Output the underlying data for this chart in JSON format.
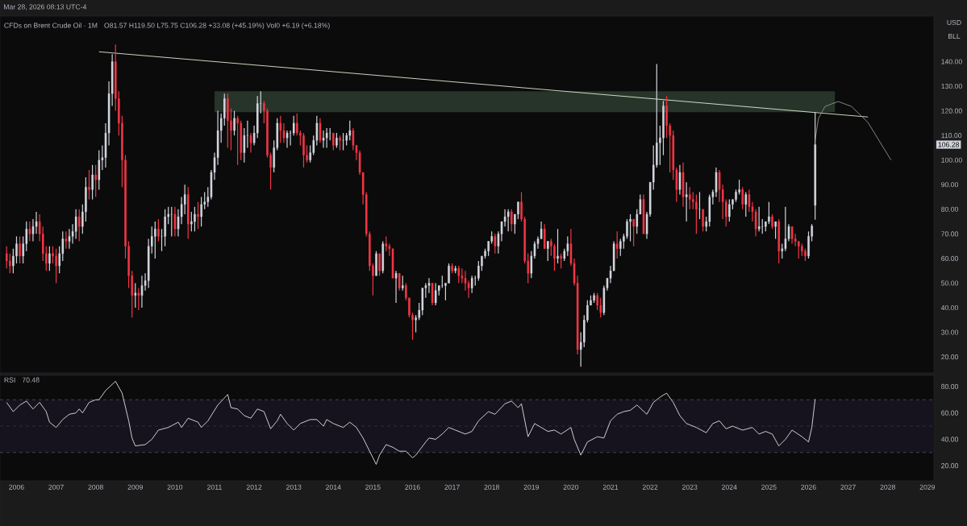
{
  "chart_data": [
    {
      "type": "candlestick",
      "title": "CFDs on Brent Crude Oil · 1M",
      "subtitle": "O81.57 H119.50 L75.75 C106.28 +33.08 (+45.19%) Vol0 +6.19 (+6.18%)",
      "annotations": [
        "Mar 28, 2026 08:13 UTC-4",
        "USD",
        "BLL",
        {
          "text": "106.28",
          "y": 106.28
        }
      ],
      "x": [
        "2005-10",
        "2005-11",
        "2005-12",
        "2006-01",
        "2006-02",
        "2006-03",
        "2006-04",
        "2006-05",
        "2006-06",
        "2006-07",
        "2006-08",
        "2006-09",
        "2006-10",
        "2006-11",
        "2006-12",
        "2007-01",
        "2007-02",
        "2007-03",
        "2007-04",
        "2007-05",
        "2007-06",
        "2007-07",
        "2007-08",
        "2007-09",
        "2007-10",
        "2007-11",
        "2007-12",
        "2008-01",
        "2008-02",
        "2008-03",
        "2008-04",
        "2008-05",
        "2008-06",
        "2008-07",
        "2008-08",
        "2008-09",
        "2008-10",
        "2008-11",
        "2008-12",
        "2009-01",
        "2009-02",
        "2009-03",
        "2009-04",
        "2009-05",
        "2009-06",
        "2009-07",
        "2009-08",
        "2009-09",
        "2009-10",
        "2009-11",
        "2009-12",
        "2010-01",
        "2010-02",
        "2010-03",
        "2010-04",
        "2010-05",
        "2010-06",
        "2010-07",
        "2010-08",
        "2010-09",
        "2010-10",
        "2010-11",
        "2010-12",
        "2011-01",
        "2011-02",
        "2011-03",
        "2011-04",
        "2011-05",
        "2011-06",
        "2011-07",
        "2011-08",
        "2011-09",
        "2011-10",
        "2011-11",
        "2011-12",
        "2012-01",
        "2012-02",
        "2012-03",
        "2012-04",
        "2012-05",
        "2012-06",
        "2012-07",
        "2012-08",
        "2012-09",
        "2012-10",
        "2012-11",
        "2012-12",
        "2013-01",
        "2013-02",
        "2013-03",
        "2013-04",
        "2013-05",
        "2013-06",
        "2013-07",
        "2013-08",
        "2013-09",
        "2013-10",
        "2013-11",
        "2013-12",
        "2014-01",
        "2014-02",
        "2014-03",
        "2014-04",
        "2014-05",
        "2014-06",
        "2014-07",
        "2014-08",
        "2014-09",
        "2014-10",
        "2014-11",
        "2014-12",
        "2015-01",
        "2015-02",
        "2015-03",
        "2015-04",
        "2015-05",
        "2015-06",
        "2015-07",
        "2015-08",
        "2015-09",
        "2015-10",
        "2015-11",
        "2015-12",
        "2016-01",
        "2016-02",
        "2016-03",
        "2016-04",
        "2016-05",
        "2016-06",
        "2016-07",
        "2016-08",
        "2016-09",
        "2016-10",
        "2016-11",
        "2016-12",
        "2017-01",
        "2017-02",
        "2017-03",
        "2017-04",
        "2017-05",
        "2017-06",
        "2017-07",
        "2017-08",
        "2017-09",
        "2017-10",
        "2017-11",
        "2017-12",
        "2018-01",
        "2018-02",
        "2018-03",
        "2018-04",
        "2018-05",
        "2018-06",
        "2018-07",
        "2018-08",
        "2018-09",
        "2018-10",
        "2018-11",
        "2018-12",
        "2019-01",
        "2019-02",
        "2019-03",
        "2019-04",
        "2019-05",
        "2019-06",
        "2019-07",
        "2019-08",
        "2019-09",
        "2019-10",
        "2019-11",
        "2019-12",
        "2020-01",
        "2020-02",
        "2020-03",
        "2020-04",
        "2020-05",
        "2020-06",
        "2020-07",
        "2020-08",
        "2020-09",
        "2020-10",
        "2020-11",
        "2020-12",
        "2021-01",
        "2021-02",
        "2021-03",
        "2021-04",
        "2021-05",
        "2021-06",
        "2021-07",
        "2021-08",
        "2021-09",
        "2021-10",
        "2021-11",
        "2021-12",
        "2022-01",
        "2022-02",
        "2022-03",
        "2022-04",
        "2022-05",
        "2022-06",
        "2022-07",
        "2022-08",
        "2022-09",
        "2022-10",
        "2022-11",
        "2022-12",
        "2023-01",
        "2023-02",
        "2023-03",
        "2023-04",
        "2023-05",
        "2023-06",
        "2023-07",
        "2023-08",
        "2023-09",
        "2023-10",
        "2023-11",
        "2023-12",
        "2024-01",
        "2024-02",
        "2024-03",
        "2024-04",
        "2024-05",
        "2024-06",
        "2024-07",
        "2024-08",
        "2024-09",
        "2024-10",
        "2024-11",
        "2024-12",
        "2025-01",
        "2025-02",
        "2025-03",
        "2025-04",
        "2025-05",
        "2025-06",
        "2025-07",
        "2025-08",
        "2025-09",
        "2025-10",
        "2025-11",
        "2025-12",
        "2026-01",
        "2026-02",
        "2026-03"
      ],
      "ohlc": [
        [
          62,
          65,
          56,
          59
        ],
        [
          59,
          62,
          54,
          57
        ],
        [
          57,
          64,
          54,
          61
        ],
        [
          61,
          69,
          58,
          66
        ],
        [
          66,
          69,
          58,
          61
        ],
        [
          61,
          69,
          58,
          66
        ],
        [
          66,
          75,
          63,
          72
        ],
        [
          72,
          75,
          67,
          70
        ],
        [
          70,
          76,
          67,
          73
        ],
        [
          73,
          79,
          70,
          75
        ],
        [
          75,
          78,
          67,
          70
        ],
        [
          70,
          73,
          59,
          62
        ],
        [
          62,
          65,
          55,
          58
        ],
        [
          58,
          65,
          55,
          62
        ],
        [
          62,
          65,
          58,
          61
        ],
        [
          61,
          64,
          50,
          57
        ],
        [
          57,
          65,
          54,
          62
        ],
        [
          62,
          71,
          59,
          68
        ],
        [
          68,
          71,
          64,
          67
        ],
        [
          67,
          72,
          64,
          69
        ],
        [
          69,
          74,
          66,
          71
        ],
        [
          71,
          80,
          68,
          77
        ],
        [
          77,
          80,
          67,
          73
        ],
        [
          73,
          82,
          70,
          79
        ],
        [
          79,
          93,
          75,
          89
        ],
        [
          89,
          96,
          84,
          88
        ],
        [
          88,
          98,
          84,
          94
        ],
        [
          94,
          98,
          85,
          92
        ],
        [
          92,
          104,
          88,
          100
        ],
        [
          100,
          106,
          96,
          101
        ],
        [
          101,
          115,
          97,
          111
        ],
        [
          111,
          132,
          106,
          127
        ],
        [
          127,
          143,
          122,
          140
        ],
        [
          140,
          147,
          120,
          125
        ],
        [
          125,
          128,
          110,
          115
        ],
        [
          115,
          118,
          89,
          100
        ],
        [
          100,
          102,
          60,
          65
        ],
        [
          65,
          67,
          48,
          53
        ],
        [
          53,
          55,
          36,
          45
        ],
        [
          45,
          50,
          40,
          46
        ],
        [
          46,
          48,
          39,
          45
        ],
        [
          45,
          53,
          40,
          49
        ],
        [
          49,
          54,
          47,
          51
        ],
        [
          51,
          68,
          48,
          65
        ],
        [
          65,
          73,
          62,
          69
        ],
        [
          69,
          75,
          60,
          72
        ],
        [
          72,
          76,
          67,
          69
        ],
        [
          69,
          72,
          63,
          69
        ],
        [
          69,
          80,
          65,
          77
        ],
        [
          77,
          81,
          74,
          78
        ],
        [
          78,
          81,
          69,
          78
        ],
        [
          78,
          81,
          69,
          72
        ],
        [
          72,
          80,
          69,
          77
        ],
        [
          77,
          85,
          74,
          82
        ],
        [
          82,
          90,
          78,
          86
        ],
        [
          86,
          89,
          68,
          74
        ],
        [
          74,
          79,
          71,
          75
        ],
        [
          75,
          81,
          71,
          78
        ],
        [
          78,
          83,
          72,
          77
        ],
        [
          77,
          85,
          73,
          82
        ],
        [
          82,
          87,
          80,
          83
        ],
        [
          83,
          89,
          81,
          85
        ],
        [
          85,
          96,
          84,
          95
        ],
        [
          95,
          103,
          92,
          101
        ],
        [
          101,
          120,
          98,
          112
        ],
        [
          112,
          119,
          107,
          117
        ],
        [
          117,
          127,
          114,
          125
        ],
        [
          125,
          127,
          105,
          116
        ],
        [
          116,
          121,
          104,
          112
        ],
        [
          112,
          120,
          110,
          117
        ],
        [
          117,
          118,
          98,
          115
        ],
        [
          115,
          116,
          100,
          103
        ],
        [
          103,
          113,
          99,
          110
        ],
        [
          110,
          116,
          105,
          110
        ],
        [
          110,
          111,
          103,
          107
        ],
        [
          107,
          114,
          106,
          111
        ],
        [
          111,
          126,
          109,
          123
        ],
        [
          123,
          128,
          119,
          123
        ],
        [
          123,
          124,
          115,
          120
        ],
        [
          120,
          121,
          101,
          102
        ],
        [
          102,
          103,
          88,
          97
        ],
        [
          97,
          108,
          95,
          105
        ],
        [
          105,
          117,
          104,
          115
        ],
        [
          115,
          118,
          107,
          112
        ],
        [
          112,
          115,
          107,
          109
        ],
        [
          109,
          112,
          105,
          111
        ],
        [
          111,
          112,
          106,
          111
        ],
        [
          111,
          118,
          110,
          115
        ],
        [
          115,
          119,
          110,
          111
        ],
        [
          111,
          112,
          106,
          110
        ],
        [
          110,
          111,
          97,
          102
        ],
        [
          102,
          106,
          99,
          100
        ],
        [
          100,
          106,
          99,
          103
        ],
        [
          103,
          110,
          102,
          108
        ],
        [
          108,
          118,
          106,
          115
        ],
        [
          115,
          117,
          107,
          108
        ],
        [
          108,
          112,
          105,
          109
        ],
        [
          109,
          113,
          105,
          111
        ],
        [
          111,
          113,
          108,
          111
        ],
        [
          111,
          111,
          104,
          106
        ],
        [
          106,
          111,
          105,
          109
        ],
        [
          109,
          110,
          104,
          108
        ],
        [
          108,
          111,
          104,
          108
        ],
        [
          108,
          111,
          106,
          110
        ],
        [
          110,
          116,
          108,
          112
        ],
        [
          112,
          113,
          104,
          106
        ],
        [
          106,
          106,
          100,
          103
        ],
        [
          103,
          104,
          94,
          95
        ],
        [
          95,
          95,
          82,
          86
        ],
        [
          86,
          87,
          69,
          70
        ],
        [
          70,
          71,
          55,
          57
        ],
        [
          57,
          58,
          45,
          53
        ],
        [
          53,
          63,
          53,
          62
        ],
        [
          62,
          62,
          53,
          55
        ],
        [
          55,
          67,
          54,
          66
        ],
        [
          66,
          69,
          63,
          65
        ],
        [
          65,
          66,
          61,
          64
        ],
        [
          64,
          64,
          52,
          52
        ],
        [
          52,
          55,
          42,
          54
        ],
        [
          54,
          54,
          47,
          48
        ],
        [
          48,
          53,
          47,
          49
        ],
        [
          49,
          50,
          43,
          44
        ],
        [
          44,
          44,
          36,
          37
        ],
        [
          37,
          38,
          27,
          35
        ],
        [
          35,
          37,
          30,
          36
        ],
        [
          36,
          42,
          35,
          39
        ],
        [
          39,
          48,
          37,
          48
        ],
        [
          48,
          50,
          44,
          49
        ],
        [
          49,
          52,
          46,
          50
        ],
        [
          50,
          50,
          41,
          42
        ],
        [
          42,
          50,
          41,
          47
        ],
        [
          47,
          49,
          45,
          49
        ],
        [
          49,
          53,
          48,
          49
        ],
        [
          49,
          50,
          43,
          50
        ],
        [
          50,
          58,
          50,
          57
        ],
        [
          57,
          58,
          54,
          55
        ],
        [
          55,
          57,
          54,
          56
        ],
        [
          56,
          57,
          50,
          53
        ],
        [
          53,
          56,
          50,
          52
        ],
        [
          52,
          55,
          47,
          50
        ],
        [
          50,
          51,
          44,
          48
        ],
        [
          48,
          53,
          46,
          52
        ],
        [
          52,
          53,
          49,
          52
        ],
        [
          52,
          59,
          51,
          57
        ],
        [
          57,
          61,
          55,
          61
        ],
        [
          61,
          64,
          60,
          63
        ],
        [
          63,
          67,
          61,
          67
        ],
        [
          67,
          71,
          66,
          69
        ],
        [
          69,
          70,
          62,
          65
        ],
        [
          65,
          71,
          62,
          70
        ],
        [
          70,
          75,
          67,
          75
        ],
        [
          75,
          80,
          73,
          77
        ],
        [
          77,
          80,
          71,
          79
        ],
        [
          79,
          80,
          71,
          74
        ],
        [
          74,
          78,
          70,
          78
        ],
        [
          78,
          83,
          76,
          83
        ],
        [
          83,
          87,
          75,
          76
        ],
        [
          76,
          77,
          58,
          59
        ],
        [
          59,
          62,
          50,
          54
        ],
        [
          54,
          63,
          52,
          61
        ],
        [
          61,
          67,
          60,
          66
        ],
        [
          66,
          69,
          64,
          68
        ],
        [
          68,
          75,
          68,
          72
        ],
        [
          72,
          74,
          64,
          64
        ],
        [
          64,
          67,
          59,
          67
        ],
        [
          67,
          68,
          61,
          65
        ],
        [
          65,
          66,
          55,
          60
        ],
        [
          60,
          72,
          58,
          61
        ],
        [
          61,
          62,
          56,
          60
        ],
        [
          60,
          64,
          59,
          63
        ],
        [
          63,
          69,
          61,
          66
        ],
        [
          66,
          72,
          57,
          58
        ],
        [
          58,
          60,
          49,
          50
        ],
        [
          50,
          53,
          21,
          23
        ],
        [
          23,
          30,
          16,
          26
        ],
        [
          26,
          37,
          24,
          35
        ],
        [
          35,
          43,
          34,
          41
        ],
        [
          41,
          45,
          41,
          43
        ],
        [
          43,
          46,
          42,
          45
        ],
        [
          45,
          46,
          39,
          41
        ],
        [
          41,
          44,
          36,
          38
        ],
        [
          38,
          49,
          37,
          48
        ],
        [
          48,
          52,
          47,
          52
        ],
        [
          52,
          57,
          50,
          55
        ],
        [
          55,
          67,
          55,
          66
        ],
        [
          66,
          71,
          60,
          64
        ],
        [
          64,
          68,
          61,
          67
        ],
        [
          67,
          70,
          64,
          69
        ],
        [
          69,
          76,
          68,
          75
        ],
        [
          75,
          78,
          67,
          76
        ],
        [
          76,
          76,
          65,
          73
        ],
        [
          73,
          80,
          70,
          78
        ],
        [
          78,
          86,
          78,
          84
        ],
        [
          84,
          86,
          70,
          70
        ],
        [
          70,
          79,
          68,
          78
        ],
        [
          78,
          91,
          77,
          91
        ],
        [
          91,
          106,
          88,
          98
        ],
        [
          98,
          139,
          97,
          107
        ],
        [
          107,
          114,
          98,
          109
        ],
        [
          109,
          124,
          102,
          122
        ],
        [
          122,
          126,
          109,
          114
        ],
        [
          114,
          115,
          95,
          110
        ],
        [
          110,
          112,
          92,
          96
        ],
        [
          96,
          97,
          83,
          88
        ],
        [
          88,
          98,
          86,
          95
        ],
        [
          95,
          99,
          81,
          85
        ],
        [
          85,
          91,
          75,
          86
        ],
        [
          86,
          89,
          80,
          84
        ],
        [
          84,
          87,
          80,
          83
        ],
        [
          83,
          86,
          70,
          80
        ],
        [
          80,
          87,
          76,
          80
        ],
        [
          80,
          80,
          71,
          73
        ],
        [
          73,
          77,
          71,
          75
        ],
        [
          75,
          86,
          73,
          85
        ],
        [
          85,
          88,
          82,
          87
        ],
        [
          87,
          97,
          85,
          95
        ],
        [
          95,
          96,
          83,
          88
        ],
        [
          88,
          90,
          76,
          83
        ],
        [
          83,
          84,
          73,
          77
        ],
        [
          77,
          84,
          75,
          82
        ],
        [
          82,
          84,
          80,
          84
        ],
        [
          84,
          88,
          83,
          87
        ],
        [
          87,
          92,
          86,
          88
        ],
        [
          88,
          89,
          80,
          82
        ],
        [
          82,
          87,
          77,
          86
        ],
        [
          86,
          88,
          79,
          81
        ],
        [
          81,
          83,
          75,
          79
        ],
        [
          79,
          80,
          69,
          72
        ],
        [
          72,
          81,
          71,
          73
        ],
        [
          73,
          76,
          70,
          73
        ],
        [
          73,
          75,
          71,
          75
        ],
        [
          75,
          83,
          74,
          77
        ],
        [
          77,
          78,
          72,
          73
        ],
        [
          73,
          75,
          68,
          75
        ],
        [
          75,
          76,
          58,
          63
        ],
        [
          63,
          66,
          60,
          64
        ],
        [
          64,
          81,
          63,
          68
        ],
        [
          68,
          74,
          67,
          73
        ],
        [
          73,
          73,
          66,
          68
        ],
        [
          68,
          70,
          65,
          67
        ],
        [
          67,
          67,
          60,
          65
        ],
        [
          65,
          66,
          61,
          63
        ],
        [
          63,
          64,
          59,
          61
        ],
        [
          61,
          71,
          60,
          69
        ],
        [
          69,
          74,
          67,
          73.2
        ],
        [
          81.57,
          119.5,
          75.75,
          106.28
        ]
      ],
      "series": [
        {
          "type": "line",
          "x": [
            "2011-01",
            "2026-09"
          ],
          "values": [
            null,
            null
          ],
          "lower": [
            119.5,
            119.5
          ],
          "upper": [
            128,
            128
          ],
          "color": "#27342a"
        },
        {
          "type": "line",
          "x": [
            "2008-02",
            "2027-07"
          ],
          "values": [
            144,
            117.5
          ],
          "color": "#d6e6cc"
        },
        {
          "type": "line",
          "x": [
            "2026-03",
            "2026-04",
            "2026-06",
            "2026-10",
            "2027-02",
            "2027-07",
            "2028-02"
          ],
          "values": [
            108.2,
            116.9,
            121.8,
            123.8,
            121.8,
            115.3,
            100
          ],
          "color": "#8c8c8c"
        }
      ],
      "xlim": [
        "2005-08",
        "2029-03"
      ],
      "ylim": [
        13.5,
        158.5
      ],
      "xticks": [
        "2006",
        "2007",
        "2008",
        "2009",
        "2010",
        "2011",
        "2012",
        "2013",
        "2014",
        "2015",
        "2016",
        "2017",
        "2018",
        "2019",
        "2020",
        "2021",
        "2022",
        "2023",
        "2024",
        "2025",
        "2026",
        "2027",
        "2028",
        "2029"
      ],
      "yticks": [
        {
          "value": 20,
          "label": "20.00"
        },
        {
          "value": 30,
          "label": "30.00"
        },
        {
          "value": 40,
          "label": "40.00"
        },
        {
          "value": 50,
          "label": "50.00"
        },
        {
          "value": 60,
          "label": "60.00"
        },
        {
          "value": 70,
          "label": "70.00"
        },
        {
          "value": 80,
          "label": "80.00"
        },
        {
          "value": 90,
          "label": "90.00"
        },
        {
          "value": 100,
          "label": "100.00"
        },
        {
          "value": 110,
          "label": "110.00"
        },
        {
          "value": 120,
          "label": "120.00"
        },
        {
          "value": 130,
          "label": "130.00"
        },
        {
          "value": 140,
          "label": "140.00"
        }
      ],
      "tick_labels": "y"
    },
    {
      "type": "line",
      "title": "RSI",
      "subtitle": "70.48",
      "series": [
        {
          "color": "#d9d9d9",
          "x": [
            "2005-10",
            "2005-12",
            "2006-02",
            "2006-04",
            "2006-06",
            "2006-08",
            "2006-10",
            "2006-11",
            "2007-01",
            "2007-03",
            "2007-05",
            "2007-07",
            "2007-08",
            "2007-09",
            "2007-11",
            "2008-01",
            "2008-02",
            "2008-04",
            "2008-07",
            "2008-09",
            "2008-11",
            "2008-12",
            "2009-01",
            "2009-04",
            "2009-06",
            "2009-08",
            "2009-11",
            "2010-02",
            "2010-03",
            "2010-05",
            "2010-08",
            "2010-09",
            "2010-11",
            "2011-02",
            "2011-05",
            "2011-06",
            "2011-08",
            "2011-10",
            "2011-12",
            "2012-02",
            "2012-04",
            "2012-06",
            "2012-08",
            "2012-09",
            "2012-11",
            "2013-01",
            "2013-03",
            "2013-06",
            "2013-08",
            "2013-10",
            "2013-11",
            "2014-01",
            "2014-04",
            "2014-06",
            "2014-08",
            "2014-10",
            "2014-12",
            "2015-02",
            "2015-03",
            "2015-05",
            "2015-07",
            "2015-09",
            "2015-11",
            "2016-01",
            "2016-02",
            "2016-05",
            "2016-06",
            "2016-08",
            "2016-10",
            "2016-12",
            "2017-02",
            "2017-05",
            "2017-07",
            "2017-09",
            "2017-12",
            "2018-02",
            "2018-05",
            "2018-07",
            "2018-09",
            "2018-10",
            "2018-12",
            "2019-02",
            "2019-04",
            "2019-06",
            "2019-08",
            "2019-10",
            "2020-01",
            "2020-02",
            "2020-04",
            "2020-06",
            "2020-09",
            "2020-11",
            "2021-01",
            "2021-03",
            "2021-05",
            "2021-07",
            "2021-09",
            "2021-12",
            "2022-02",
            "2022-04",
            "2022-06",
            "2022-08",
            "2022-10",
            "2022-12",
            "2023-03",
            "2023-06",
            "2023-08",
            "2023-10",
            "2023-12",
            "2024-02",
            "2024-05",
            "2024-08",
            "2024-10",
            "2024-12",
            "2025-02",
            "2025-04",
            "2025-06",
            "2025-08",
            "2025-11",
            "2026-01",
            "2026-02",
            "2026-03"
          ],
          "values": [
            68,
            61,
            66,
            69,
            63,
            68,
            61,
            53,
            49,
            55,
            59,
            60,
            63,
            60,
            68,
            70,
            70,
            77,
            84,
            75,
            54,
            41,
            35,
            36,
            40,
            47,
            49,
            53,
            49,
            56,
            53,
            49,
            54,
            66,
            74,
            64,
            63,
            58,
            56,
            63,
            61,
            48,
            54,
            59,
            52,
            47,
            52,
            55,
            55,
            50,
            55,
            52,
            49,
            53,
            49,
            41,
            31,
            21,
            28,
            36,
            34,
            31,
            31,
            26,
            28,
            38,
            41,
            40,
            44,
            49,
            47,
            44,
            46,
            54,
            61,
            59,
            67,
            69,
            64,
            67,
            42,
            52,
            49,
            46,
            47,
            44,
            49,
            40,
            28,
            38,
            42,
            41,
            54,
            59,
            61,
            62,
            66,
            59,
            68,
            72,
            75,
            68,
            58,
            52,
            49,
            45,
            52,
            54,
            48,
            50,
            47,
            49,
            44,
            46,
            44,
            35,
            40,
            47,
            42,
            38,
            49,
            70.48
          ]
        }
      ],
      "bands": [
        {
          "axis": "y",
          "from": 30,
          "to": 70,
          "color": "#16131f"
        }
      ],
      "ref_lines": [
        {
          "axis": "y",
          "value": 70,
          "color": "#5d606b",
          "line_style": "dashed"
        },
        {
          "axis": "y",
          "value": 50,
          "color": "#3a3c45",
          "line_style": "dashed"
        },
        {
          "axis": "y",
          "value": 30,
          "color": "#5d606b",
          "line_style": "dashed"
        }
      ],
      "xlim": [
        "2005-08",
        "2029-03"
      ],
      "ylim": [
        8.5,
        88.5
      ],
      "xticks": [
        "2006",
        "2007",
        "2008",
        "2009",
        "2010",
        "2011",
        "2012",
        "2013",
        "2014",
        "2015",
        "2016",
        "2017",
        "2018",
        "2019",
        "2020",
        "2021",
        "2022",
        "2023",
        "2024",
        "2025",
        "2026",
        "2027",
        "2028",
        "2029"
      ],
      "yticks": [
        {
          "value": 20,
          "label": "20.00"
        },
        {
          "value": 40,
          "label": "40.00"
        },
        {
          "value": 60,
          "label": "60.00"
        },
        {
          "value": 80,
          "label": "80.00"
        }
      ]
    }
  ]
}
